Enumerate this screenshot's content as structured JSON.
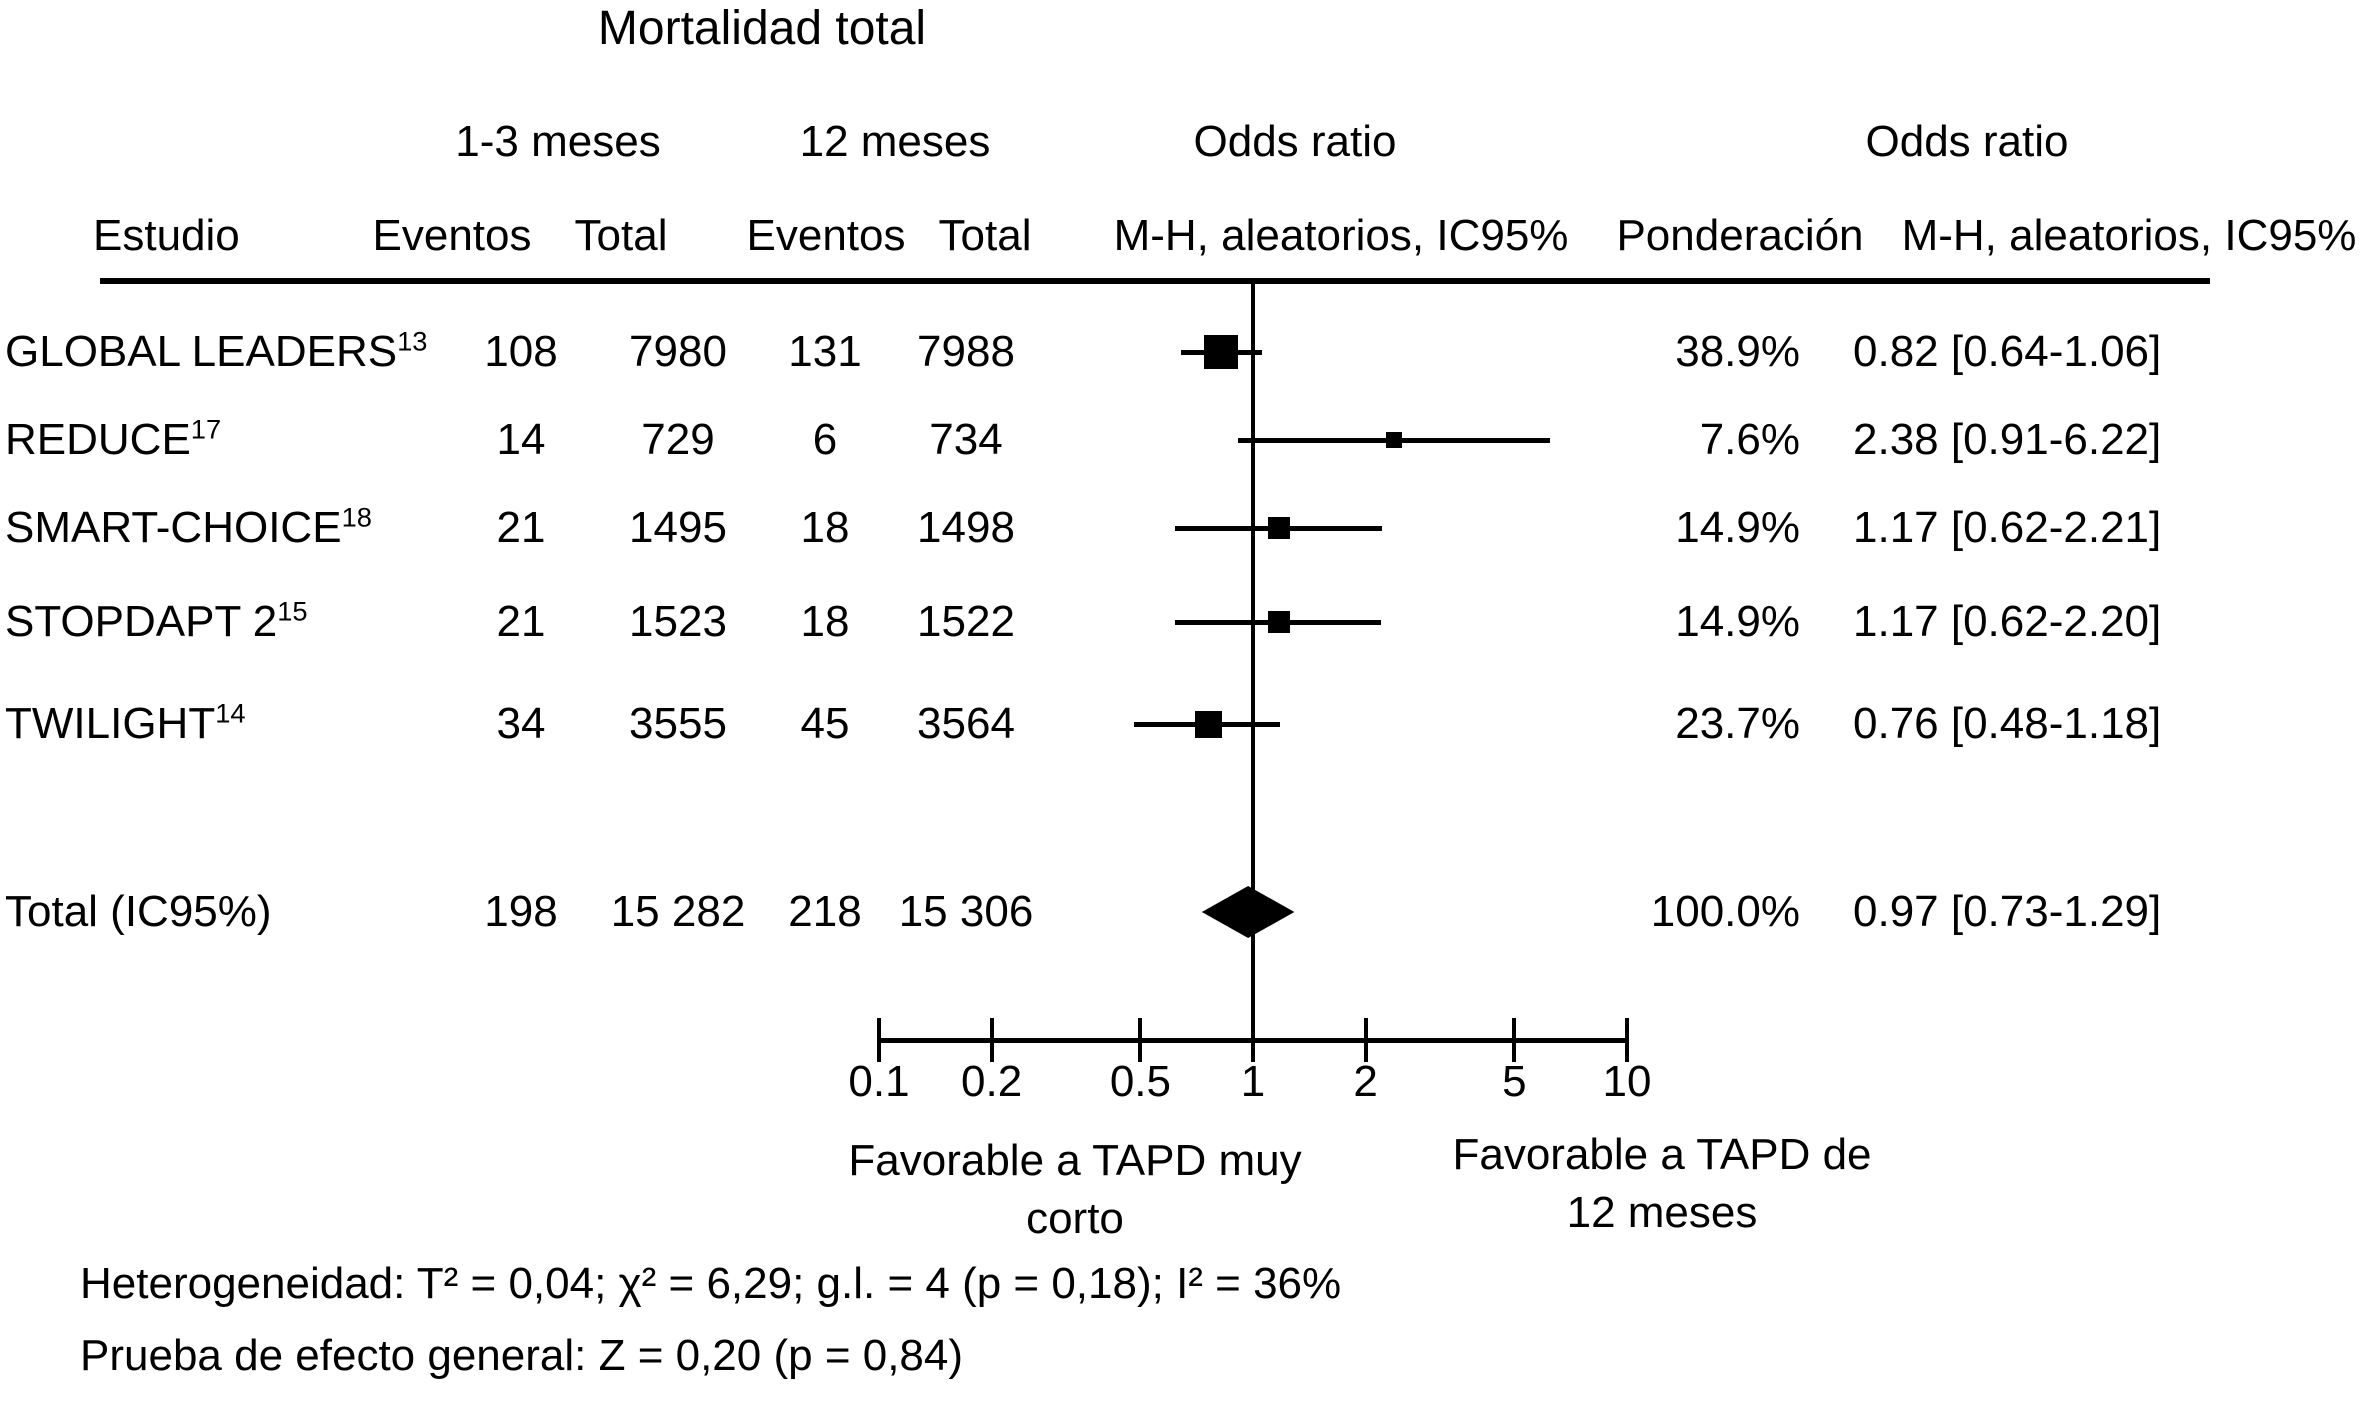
{
  "figure": {
    "title": "Mortalidad total",
    "col_groups": {
      "group1": "1-3 meses",
      "group2": "12 meses",
      "odds_ratio_plot": "Odds ratio",
      "odds_ratio_text": "Odds ratio"
    },
    "col_headers": {
      "study": "Estudio",
      "events1": "Eventos",
      "total1": "Total",
      "events2": "Eventos",
      "total2": "Total",
      "mh_plot": "M-H, aleatorios, IC95%",
      "weight": "Ponderación",
      "mh_text": "M-H, aleatorios, IC95%"
    }
  },
  "chart_data": {
    "type": "forest",
    "x_scale": "log10",
    "axis": {
      "ticks": [
        0.1,
        0.2,
        0.5,
        1,
        2,
        5,
        10
      ],
      "range": [
        0.1,
        10
      ],
      "ref_line": 1
    },
    "studies": [
      {
        "name": "GLOBAL LEADERS",
        "ref": "13",
        "events_1_3m": "108",
        "total_1_3m": "7980",
        "events_12m": "131",
        "total_12m": "7988",
        "weight": "38.9%",
        "or": 0.82,
        "ci_low": 0.64,
        "ci_high": 1.06,
        "or_label": "0.82 [0.64-1.06]"
      },
      {
        "name": "REDUCE",
        "ref": "17",
        "events_1_3m": "14",
        "total_1_3m": "729",
        "events_12m": "6",
        "total_12m": "734",
        "weight": "7.6%",
        "or": 2.38,
        "ci_low": 0.91,
        "ci_high": 6.22,
        "or_label": "2.38 [0.91-6.22]"
      },
      {
        "name": "SMART-CHOICE",
        "ref": "18",
        "events_1_3m": "21",
        "total_1_3m": "1495",
        "events_12m": "18",
        "total_12m": "1498",
        "weight": "14.9%",
        "or": 1.17,
        "ci_low": 0.62,
        "ci_high": 2.21,
        "or_label": "1.17 [0.62-2.21]"
      },
      {
        "name": "STOPDAPT 2",
        "ref": "15",
        "events_1_3m": "21",
        "total_1_3m": "1523",
        "events_12m": "18",
        "total_12m": "1522",
        "weight": "14.9%",
        "or": 1.17,
        "ci_low": 0.62,
        "ci_high": 2.2,
        "or_label": "1.17 [0.62-2.20]"
      },
      {
        "name": "TWILIGHT",
        "ref": "14",
        "events_1_3m": "34",
        "total_1_3m": "3555",
        "events_12m": "45",
        "total_12m": "3564",
        "weight": "23.7%",
        "or": 0.76,
        "ci_low": 0.48,
        "ci_high": 1.18,
        "or_label": "0.76 [0.48-1.18]"
      }
    ],
    "total": {
      "name": "Total (IC95%)",
      "events_1_3m": "198",
      "total_1_3m": "15 282",
      "events_12m": "218",
      "total_12m": "15 306",
      "weight": "100.0%",
      "or": 0.97,
      "ci_low": 0.73,
      "ci_high": 1.29,
      "or_label": "0.97 [0.73-1.29]"
    },
    "favor_left": [
      "Favorable a TAPD muy",
      "corto"
    ],
    "favor_right": [
      "Favorable a TAPD de",
      "12 meses"
    ],
    "heterogeneity": "Heterogeneidad: T² = 0,04; χ² = 6,29; g.l. = 4 (p = 0,18); I² = 36%",
    "overall_effect": "Prueba de efecto general: Z = 0,20 (p = 0,84)"
  }
}
